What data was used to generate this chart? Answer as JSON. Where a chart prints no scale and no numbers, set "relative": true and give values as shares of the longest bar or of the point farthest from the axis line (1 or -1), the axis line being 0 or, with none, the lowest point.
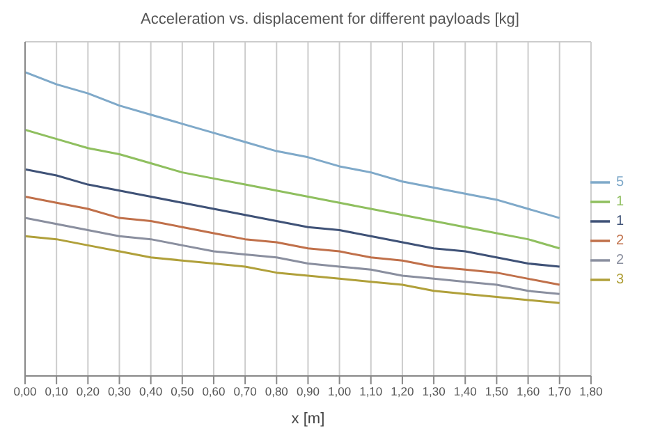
{
  "chart_data": {
    "type": "line",
    "title": "Acceleration vs. displacement for different payloads [kg]",
    "xlabel": "x [m]",
    "relative": true,
    "grid": true,
    "legend": "right",
    "marker": "none",
    "line_style": "solid",
    "x": [
      0,
      0.1,
      0.2,
      0.3,
      0.4,
      0.5,
      0.6,
      0.7,
      0.8,
      0.9,
      1.0,
      1.1,
      1.2,
      1.3,
      1.4,
      1.5,
      1.6,
      1.7
    ],
    "xlim": [
      0,
      1.8
    ],
    "xticks": [
      {
        "value": 0,
        "label": "0,00"
      },
      {
        "value": 0.1,
        "label": "0,10"
      },
      {
        "value": 0.2,
        "label": "0,20"
      },
      {
        "value": 0.3,
        "label": "0,30"
      },
      {
        "value": 0.4,
        "label": "0,40"
      },
      {
        "value": 0.5,
        "label": "0,50"
      },
      {
        "value": 0.6,
        "label": "0,60"
      },
      {
        "value": 0.7,
        "label": "0,70"
      },
      {
        "value": 0.8,
        "label": "0,80"
      },
      {
        "value": 0.9,
        "label": "0,90"
      },
      {
        "value": 1.0,
        "label": "1,00"
      },
      {
        "value": 1.1,
        "label": "1,10"
      },
      {
        "value": 1.2,
        "label": "1,20"
      },
      {
        "value": 1.3,
        "label": "1,30"
      },
      {
        "value": 1.4,
        "label": "1,40"
      },
      {
        "value": 1.5,
        "label": "1,50"
      },
      {
        "value": 1.6,
        "label": "1,60"
      },
      {
        "value": 1.7,
        "label": "1,70"
      },
      {
        "value": 1.8,
        "label": "1,80"
      }
    ],
    "series": [
      {
        "name": "5",
        "color": "#7fa9c9",
        "values": [
          1,
          0.96,
          0.93,
          0.89,
          0.86,
          0.83,
          0.8,
          0.77,
          0.74,
          0.72,
          0.69,
          0.67,
          0.64,
          0.62,
          0.6,
          0.58,
          0.55,
          0.52
        ]
      },
      {
        "name": "1",
        "color": "#8fbf5f",
        "values": [
          0.81,
          0.78,
          0.75,
          0.73,
          0.7,
          0.67,
          0.65,
          0.63,
          0.61,
          0.59,
          0.57,
          0.55,
          0.53,
          0.51,
          0.49,
          0.47,
          0.45,
          0.42
        ]
      },
      {
        "name": "1",
        "color": "#3f5277",
        "values": [
          0.68,
          0.66,
          0.63,
          0.61,
          0.59,
          0.57,
          0.55,
          0.53,
          0.51,
          0.49,
          0.48,
          0.46,
          0.44,
          0.42,
          0.41,
          0.39,
          0.37,
          0.36
        ]
      },
      {
        "name": "2",
        "color": "#c0704a",
        "values": [
          0.59,
          0.57,
          0.55,
          0.52,
          0.51,
          0.49,
          0.47,
          0.45,
          0.44,
          0.42,
          0.41,
          0.39,
          0.38,
          0.36,
          0.35,
          0.34,
          0.32,
          0.3
        ]
      },
      {
        "name": "2",
        "color": "#8a8f9f",
        "values": [
          0.52,
          0.5,
          0.48,
          0.46,
          0.45,
          0.43,
          0.41,
          0.4,
          0.39,
          0.37,
          0.36,
          0.35,
          0.33,
          0.32,
          0.31,
          0.3,
          0.28,
          0.27
        ]
      },
      {
        "name": "3",
        "color": "#b0a03a",
        "values": [
          0.46,
          0.45,
          0.43,
          0.41,
          0.39,
          0.38,
          0.37,
          0.36,
          0.34,
          0.33,
          0.32,
          0.31,
          0.3,
          0.28,
          0.27,
          0.26,
          0.25,
          0.24
        ]
      }
    ]
  }
}
